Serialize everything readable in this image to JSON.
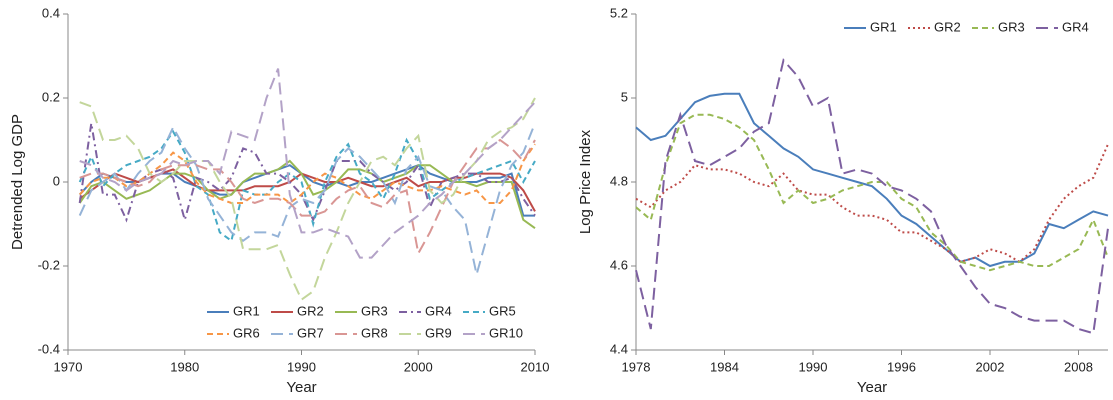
{
  "chart_data": [
    {
      "type": "line",
      "ylabel": "Detrended Log GDP",
      "xlabel": "Year",
      "x": [
        1971,
        1972,
        1973,
        1974,
        1975,
        1976,
        1977,
        1978,
        1979,
        1980,
        1981,
        1982,
        1983,
        1984,
        1985,
        1986,
        1987,
        1988,
        1989,
        1990,
        1991,
        1992,
        1993,
        1994,
        1995,
        1996,
        1997,
        1998,
        1999,
        2000,
        2001,
        2002,
        2003,
        2004,
        2005,
        2006,
        2007,
        2008,
        2009,
        2010
      ],
      "xlim": [
        1970,
        2010
      ],
      "xticks": [
        1970,
        1980,
        1990,
        2000,
        2010
      ],
      "ylim": [
        -0.4,
        0.4
      ],
      "yticks": [
        -0.4,
        -0.2,
        0,
        0.2,
        0.4
      ],
      "legend": "lower right",
      "series": [
        {
          "name": "GR1",
          "color": "#4a7ebb",
          "style": "solid",
          "values": [
            -0.03,
            0.0,
            0.02,
            0.01,
            0.0,
            0.0,
            0.01,
            0.02,
            0.02,
            0.0,
            -0.01,
            -0.02,
            -0.03,
            -0.03,
            0.0,
            0.01,
            0.02,
            0.03,
            0.04,
            0.02,
            0.0,
            -0.01,
            0.0,
            -0.01,
            0.0,
            0.0,
            0.01,
            0.02,
            0.03,
            0.04,
            0.02,
            0.01,
            0.0,
            0.0,
            0.0,
            0.01,
            0.01,
            0.02,
            -0.08,
            -0.08
          ]
        },
        {
          "name": "GR2",
          "color": "#be4b48",
          "style": "solid",
          "values": [
            -0.04,
            -0.02,
            0.0,
            0.02,
            0.01,
            0.0,
            0.01,
            0.02,
            0.03,
            0.01,
            -0.01,
            -0.02,
            -0.02,
            -0.02,
            -0.02,
            -0.01,
            -0.01,
            -0.01,
            0.0,
            0.02,
            0.01,
            0.0,
            0.0,
            0.01,
            0.0,
            -0.01,
            -0.01,
            0.0,
            0.01,
            -0.01,
            0.0,
            0.0,
            0.01,
            0.01,
            0.02,
            0.02,
            0.02,
            0.01,
            -0.02,
            -0.07
          ]
        },
        {
          "name": "GR3",
          "color": "#98b954",
          "style": "solid",
          "values": [
            -0.05,
            -0.01,
            0.0,
            -0.02,
            -0.04,
            -0.03,
            -0.02,
            0.0,
            0.02,
            0.02,
            0.01,
            -0.02,
            -0.04,
            -0.03,
            0.0,
            0.02,
            0.02,
            0.03,
            0.05,
            0.02,
            -0.03,
            -0.02,
            0.0,
            0.03,
            0.03,
            0.02,
            0.0,
            0.01,
            0.02,
            0.04,
            0.04,
            0.02,
            0.0,
            0.0,
            -0.01,
            0.0,
            0.0,
            0.0,
            -0.09,
            -0.11
          ]
        },
        {
          "name": "GR4",
          "color": "#7d60a0",
          "style": "dashdot",
          "values": [
            -0.05,
            0.14,
            -0.03,
            -0.03,
            -0.09,
            0.0,
            0.02,
            0.03,
            0.01,
            -0.09,
            0.01,
            0.0,
            -0.02,
            0.01,
            0.08,
            0.07,
            0.02,
            0.02,
            0.0,
            -0.03,
            -0.09,
            -0.02,
            0.05,
            0.05,
            0.05,
            0.02,
            0.0,
            -0.02,
            0.0,
            0.04,
            -0.06,
            0.0,
            0.01,
            0.02,
            0.02,
            0.0,
            0.0,
            0.01,
            -0.04,
            -0.08
          ]
        },
        {
          "name": "GR5",
          "color": "#46aac5",
          "style": "dashed",
          "values": [
            0.0,
            0.06,
            -0.01,
            0.02,
            0.04,
            0.05,
            0.06,
            0.08,
            0.12,
            0.07,
            -0.01,
            -0.03,
            -0.12,
            -0.14,
            -0.02,
            -0.03,
            -0.03,
            0.0,
            0.02,
            0.0,
            -0.1,
            0.0,
            0.06,
            0.09,
            0.02,
            0.0,
            -0.04,
            0.02,
            0.1,
            0.05,
            -0.04,
            -0.02,
            0.0,
            0.01,
            0.02,
            0.03,
            0.04,
            0.05,
            0.0,
            0.05
          ]
        },
        {
          "name": "GR6",
          "color": "#f79646",
          "style": "dashed",
          "values": [
            -0.03,
            0.0,
            0.01,
            0.01,
            -0.01,
            0.0,
            0.02,
            0.04,
            0.07,
            0.05,
            0.0,
            -0.03,
            -0.04,
            -0.05,
            -0.05,
            -0.03,
            -0.03,
            -0.03,
            -0.05,
            -0.03,
            0.0,
            0.02,
            0.01,
            -0.01,
            -0.03,
            -0.04,
            -0.02,
            0.0,
            -0.01,
            -0.02,
            -0.02,
            -0.01,
            -0.02,
            -0.03,
            -0.02,
            -0.05,
            -0.05,
            -0.02,
            0.05,
            0.09
          ]
        },
        {
          "name": "GR7",
          "color": "#95b3d7",
          "style": "longdash",
          "values": [
            -0.08,
            -0.02,
            0.0,
            0.02,
            -0.02,
            0.02,
            0.05,
            0.07,
            0.13,
            0.08,
            0.04,
            -0.04,
            -0.08,
            -0.12,
            -0.14,
            -0.12,
            -0.12,
            -0.13,
            -0.06,
            -0.04,
            -0.05,
            -0.02,
            0.05,
            0.08,
            0.06,
            0.03,
            0.0,
            -0.05,
            0.03,
            0.06,
            -0.01,
            -0.02,
            -0.06,
            -0.09,
            -0.22,
            -0.12,
            -0.02,
            0.04,
            0.07,
            0.14
          ]
        },
        {
          "name": "GR8",
          "color": "#d99694",
          "style": "longdash",
          "values": [
            0.01,
            0.02,
            0.02,
            0.01,
            0.0,
            -0.01,
            0.0,
            0.03,
            0.04,
            0.04,
            0.04,
            0.03,
            0.03,
            0.0,
            -0.04,
            -0.05,
            -0.04,
            -0.04,
            -0.05,
            -0.08,
            -0.08,
            -0.07,
            -0.04,
            -0.02,
            -0.01,
            -0.05,
            -0.06,
            -0.03,
            -0.02,
            -0.17,
            -0.12,
            -0.06,
            0.0,
            0.04,
            0.08,
            0.08,
            0.1,
            0.08,
            0.05,
            0.1
          ]
        },
        {
          "name": "GR9",
          "color": "#c3d69b",
          "style": "longdash",
          "values": [
            0.19,
            0.18,
            0.1,
            0.1,
            0.11,
            0.08,
            0.02,
            0.0,
            0.02,
            0.05,
            0.05,
            0.05,
            0.0,
            -0.04,
            -0.16,
            -0.16,
            -0.16,
            -0.15,
            -0.22,
            -0.28,
            -0.26,
            -0.18,
            -0.12,
            -0.05,
            0.0,
            0.05,
            0.06,
            0.04,
            0.08,
            0.11,
            -0.02,
            -0.05,
            -0.03,
            0.02,
            0.05,
            0.1,
            0.12,
            0.13,
            0.15,
            0.2
          ]
        },
        {
          "name": "GR10",
          "color": "#b3a2c7",
          "style": "longdash",
          "values": [
            0.05,
            0.04,
            0.01,
            0.0,
            -0.02,
            0.0,
            0.01,
            0.02,
            0.05,
            0.04,
            0.05,
            0.05,
            0.02,
            0.12,
            0.11,
            0.1,
            0.2,
            0.27,
            -0.03,
            -0.12,
            -0.12,
            -0.11,
            -0.12,
            -0.13,
            -0.18,
            -0.18,
            -0.15,
            -0.12,
            -0.1,
            -0.08,
            -0.05,
            -0.03,
            0.0,
            0.02,
            0.05,
            0.08,
            0.1,
            0.13,
            0.16,
            0.19
          ]
        }
      ]
    },
    {
      "type": "line",
      "ylabel": "Log Price Index",
      "xlabel": "Year",
      "x": [
        1978,
        1979,
        1980,
        1981,
        1982,
        1983,
        1984,
        1985,
        1986,
        1987,
        1988,
        1989,
        1990,
        1991,
        1992,
        1993,
        1994,
        1995,
        1996,
        1997,
        1998,
        1999,
        2000,
        2001,
        2002,
        2003,
        2004,
        2005,
        2006,
        2007,
        2008,
        2009,
        2010
      ],
      "xlim": [
        1978,
        2010
      ],
      "xticks": [
        1978,
        1984,
        1990,
        1996,
        2002,
        2008
      ],
      "ylim": [
        4.4,
        5.2
      ],
      "yticks": [
        4.4,
        4.6,
        4.8,
        5,
        5.2
      ],
      "legend": "upper right",
      "series": [
        {
          "name": "GR1",
          "color": "#4a7ebb",
          "style": "solid",
          "values": [
            4.93,
            4.9,
            4.91,
            4.95,
            4.99,
            5.005,
            5.01,
            5.01,
            4.94,
            4.91,
            4.88,
            4.86,
            4.83,
            4.82,
            4.81,
            4.8,
            4.79,
            4.76,
            4.72,
            4.7,
            4.67,
            4.64,
            4.61,
            4.62,
            4.6,
            4.61,
            4.61,
            4.63,
            4.7,
            4.69,
            4.71,
            4.73,
            4.72
          ]
        },
        {
          "name": "GR2",
          "color": "#be4b48",
          "style": "dotted",
          "values": [
            4.76,
            4.74,
            4.78,
            4.8,
            4.84,
            4.83,
            4.83,
            4.82,
            4.8,
            4.79,
            4.82,
            4.78,
            4.77,
            4.77,
            4.74,
            4.72,
            4.72,
            4.71,
            4.68,
            4.68,
            4.66,
            4.64,
            4.61,
            4.62,
            4.64,
            4.63,
            4.61,
            4.64,
            4.71,
            4.76,
            4.79,
            4.81,
            4.89
          ]
        },
        {
          "name": "GR3",
          "color": "#98b954",
          "style": "dashed",
          "values": [
            4.74,
            4.71,
            4.84,
            4.94,
            4.96,
            4.96,
            4.95,
            4.93,
            4.9,
            4.83,
            4.75,
            4.78,
            4.75,
            4.76,
            4.78,
            4.79,
            4.8,
            4.8,
            4.76,
            4.74,
            4.68,
            4.65,
            4.61,
            4.6,
            4.59,
            4.6,
            4.61,
            4.6,
            4.6,
            4.62,
            4.64,
            4.71,
            4.62
          ]
        },
        {
          "name": "GR4",
          "color": "#7d60a0",
          "style": "longdash",
          "values": [
            4.59,
            4.45,
            4.85,
            4.96,
            4.85,
            4.84,
            4.86,
            4.88,
            4.92,
            4.94,
            5.09,
            5.05,
            4.98,
            5.0,
            4.82,
            4.83,
            4.82,
            4.79,
            4.78,
            4.76,
            4.73,
            4.65,
            4.6,
            4.55,
            4.51,
            4.5,
            4.48,
            4.47,
            4.47,
            4.47,
            4.45,
            4.44,
            4.69
          ]
        }
      ]
    }
  ]
}
